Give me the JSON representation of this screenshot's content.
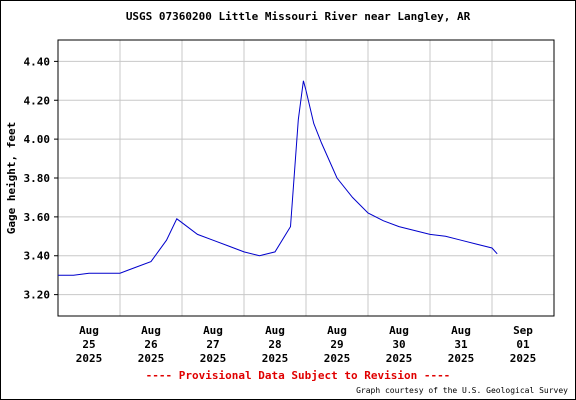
{
  "chart_data": {
    "type": "line",
    "title": "USGS 07360200 Little Missouri River near Langley, AR",
    "y_label": "Gage height, feet",
    "footer_note": "---- Provisional Data Subject to Revision ----",
    "credit": "Graph courtesy of the U.S. Geological Survey",
    "grid": true,
    "x": [
      "2025-08-25T00:00",
      "2025-08-25T06:00",
      "2025-08-25T12:00",
      "2025-08-25T18:00",
      "2025-08-26T00:00",
      "2025-08-26T06:00",
      "2025-08-26T12:00",
      "2025-08-26T18:00",
      "2025-08-26T22:00",
      "2025-08-27T00:00",
      "2025-08-27T06:00",
      "2025-08-27T12:00",
      "2025-08-27T18:00",
      "2025-08-28T00:00",
      "2025-08-28T06:00",
      "2025-08-28T12:00",
      "2025-08-28T18:00",
      "2025-08-28T21:00",
      "2025-08-28T23:00",
      "2025-08-29T00:00",
      "2025-08-29T03:00",
      "2025-08-29T06:00",
      "2025-08-29T12:00",
      "2025-08-29T18:00",
      "2025-08-30T00:00",
      "2025-08-30T06:00",
      "2025-08-30T12:00",
      "2025-08-30T18:00",
      "2025-08-31T00:00",
      "2025-08-31T06:00",
      "2025-08-31T12:00",
      "2025-08-31T18:00",
      "2025-09-01T00:00",
      "2025-09-01T02:00"
    ],
    "series": [
      {
        "name": "Gage height",
        "color": "#0000cc",
        "values": [
          3.3,
          3.3,
          3.31,
          3.31,
          3.31,
          3.34,
          3.37,
          3.48,
          3.59,
          3.57,
          3.51,
          3.48,
          3.45,
          3.42,
          3.4,
          3.42,
          3.55,
          4.1,
          4.3,
          4.25,
          4.08,
          3.98,
          3.8,
          3.7,
          3.62,
          3.58,
          3.55,
          3.53,
          3.51,
          3.5,
          3.48,
          3.46,
          3.44,
          3.41
        ]
      }
    ],
    "xlim": [
      "2025-08-25T00:00",
      "2025-09-02T00:00"
    ],
    "xgrid": [
      "2025-08-26T00:00",
      "2025-08-27T00:00",
      "2025-08-28T00:00",
      "2025-08-29T00:00",
      "2025-08-30T00:00",
      "2025-08-31T00:00",
      "2025-09-01T00:00"
    ],
    "xticks": [
      {
        "value": "2025-08-25T12:00",
        "label": "Aug 25 2025"
      },
      {
        "value": "2025-08-26T12:00",
        "label": "Aug 26 2025"
      },
      {
        "value": "2025-08-27T12:00",
        "label": "Aug 27 2025"
      },
      {
        "value": "2025-08-28T12:00",
        "label": "Aug 28 2025"
      },
      {
        "value": "2025-08-29T12:00",
        "label": "Aug 29 2025"
      },
      {
        "value": "2025-08-30T12:00",
        "label": "Aug 30 2025"
      },
      {
        "value": "2025-08-31T12:00",
        "label": "Aug 31 2025"
      },
      {
        "value": "2025-09-01T12:00",
        "label": "Sep 01 2025"
      }
    ],
    "ylim": [
      3.09,
      4.51
    ],
    "yticks": [
      {
        "value": 3.2,
        "label": "3.20"
      },
      {
        "value": 3.4,
        "label": "3.40"
      },
      {
        "value": 3.6,
        "label": "3.60"
      },
      {
        "value": 3.8,
        "label": "3.80"
      },
      {
        "value": 4.0,
        "label": "4.00"
      },
      {
        "value": 4.2,
        "label": "4.20"
      },
      {
        "value": 4.4,
        "label": "4.40"
      }
    ]
  }
}
